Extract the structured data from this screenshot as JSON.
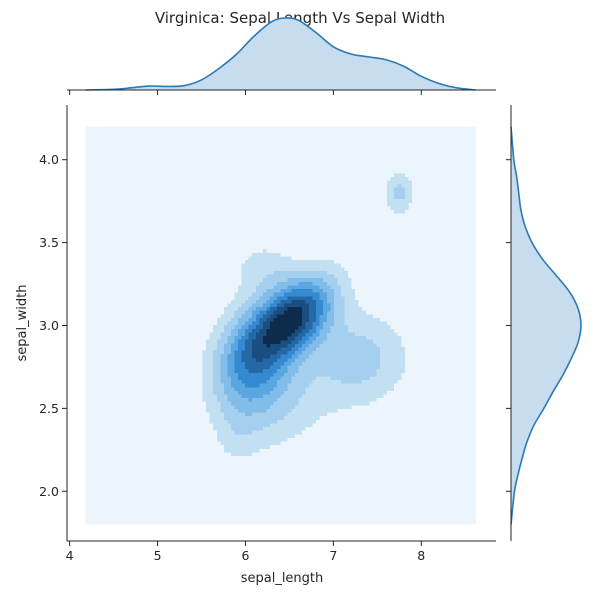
{
  "chart_data": {
    "type": "jointplot-kde",
    "title": "Virginica: Sepal Length Vs Sepal Width",
    "xlabel": "sepal_length",
    "ylabel": "sepal_width",
    "xlim": [
      3.97,
      8.85
    ],
    "ylim": [
      1.7,
      4.33
    ],
    "x_ticks": [
      "4",
      "5",
      "6",
      "7",
      "8"
    ],
    "x_tick_values": [
      4,
      5,
      6,
      7,
      8
    ],
    "y_ticks": [
      "2.0",
      "2.5",
      "3.0",
      "3.5",
      "4.0"
    ],
    "y_tick_values": [
      2.0,
      2.5,
      3.0,
      3.5,
      4.0
    ],
    "grid": false,
    "kde_grid_extent": {
      "x": [
        4.18,
        8.62
      ],
      "y": [
        1.8,
        4.2
      ]
    },
    "kde_components": [
      {
        "mx": 6.55,
        "my": 3.05,
        "sx": 0.32,
        "sy": 0.17,
        "rho": 0.45,
        "w": 1.0
      },
      {
        "mx": 6.05,
        "my": 2.8,
        "sx": 0.3,
        "sy": 0.22,
        "rho": 0.15,
        "w": 0.55
      },
      {
        "mx": 7.3,
        "my": 2.8,
        "sx": 0.4,
        "sy": 0.2,
        "rho": 0.0,
        "w": 0.32
      },
      {
        "mx": 6.3,
        "my": 2.55,
        "sx": 0.45,
        "sy": 0.22,
        "rho": 0.0,
        "w": 0.25
      },
      {
        "mx": 7.75,
        "my": 3.8,
        "sx": 0.12,
        "sy": 0.1,
        "rho": 0.0,
        "w": 0.3
      },
      {
        "mx": 5.9,
        "my": 2.3,
        "sx": 0.18,
        "sy": 0.12,
        "rho": 0.0,
        "w": 0.1
      },
      {
        "mx": 6.2,
        "my": 3.35,
        "sx": 0.25,
        "sy": 0.12,
        "rho": 0.0,
        "w": 0.18
      },
      {
        "mx": 7.1,
        "my": 3.55,
        "sx": 0.12,
        "sy": 0.1,
        "rho": 0.0,
        "w": 0.08
      }
    ],
    "contour_levels": [
      0.12,
      0.23,
      0.34,
      0.45,
      0.56,
      0.67,
      0.78,
      0.89
    ],
    "contour_fills": [
      "#c3dff2",
      "#a5cfee",
      "#82bce8",
      "#59a6e1",
      "#3589d1",
      "#2469a6",
      "#1a4e80",
      "#0d2b4a"
    ],
    "background_fill": "#ecf4fc",
    "marginal_fill": "#c7dcee",
    "marginal_line": "#2a7ab6",
    "x_marginal": [
      [
        4.18,
        0.0
      ],
      [
        4.5,
        0.01
      ],
      [
        4.7,
        0.03
      ],
      [
        4.9,
        0.055
      ],
      [
        5.1,
        0.05
      ],
      [
        5.3,
        0.06
      ],
      [
        5.5,
        0.14
      ],
      [
        5.7,
        0.3
      ],
      [
        5.9,
        0.5
      ],
      [
        6.1,
        0.75
      ],
      [
        6.3,
        0.95
      ],
      [
        6.45,
        1.0
      ],
      [
        6.6,
        0.97
      ],
      [
        6.8,
        0.8
      ],
      [
        7.0,
        0.6
      ],
      [
        7.2,
        0.5
      ],
      [
        7.4,
        0.46
      ],
      [
        7.6,
        0.42
      ],
      [
        7.8,
        0.33
      ],
      [
        8.0,
        0.19
      ],
      [
        8.2,
        0.09
      ],
      [
        8.4,
        0.03
      ],
      [
        8.62,
        0.0
      ]
    ],
    "y_marginal": [
      [
        1.8,
        0.0
      ],
      [
        2.0,
        0.05
      ],
      [
        2.1,
        0.1
      ],
      [
        2.2,
        0.16
      ],
      [
        2.3,
        0.23
      ],
      [
        2.4,
        0.33
      ],
      [
        2.5,
        0.47
      ],
      [
        2.6,
        0.6
      ],
      [
        2.7,
        0.74
      ],
      [
        2.8,
        0.86
      ],
      [
        2.9,
        0.96
      ],
      [
        3.0,
        1.0
      ],
      [
        3.1,
        0.96
      ],
      [
        3.2,
        0.84
      ],
      [
        3.3,
        0.65
      ],
      [
        3.4,
        0.45
      ],
      [
        3.5,
        0.3
      ],
      [
        3.6,
        0.2
      ],
      [
        3.7,
        0.14
      ],
      [
        3.8,
        0.11
      ],
      [
        3.9,
        0.08
      ],
      [
        4.0,
        0.04
      ],
      [
        4.2,
        0.0
      ]
    ]
  }
}
